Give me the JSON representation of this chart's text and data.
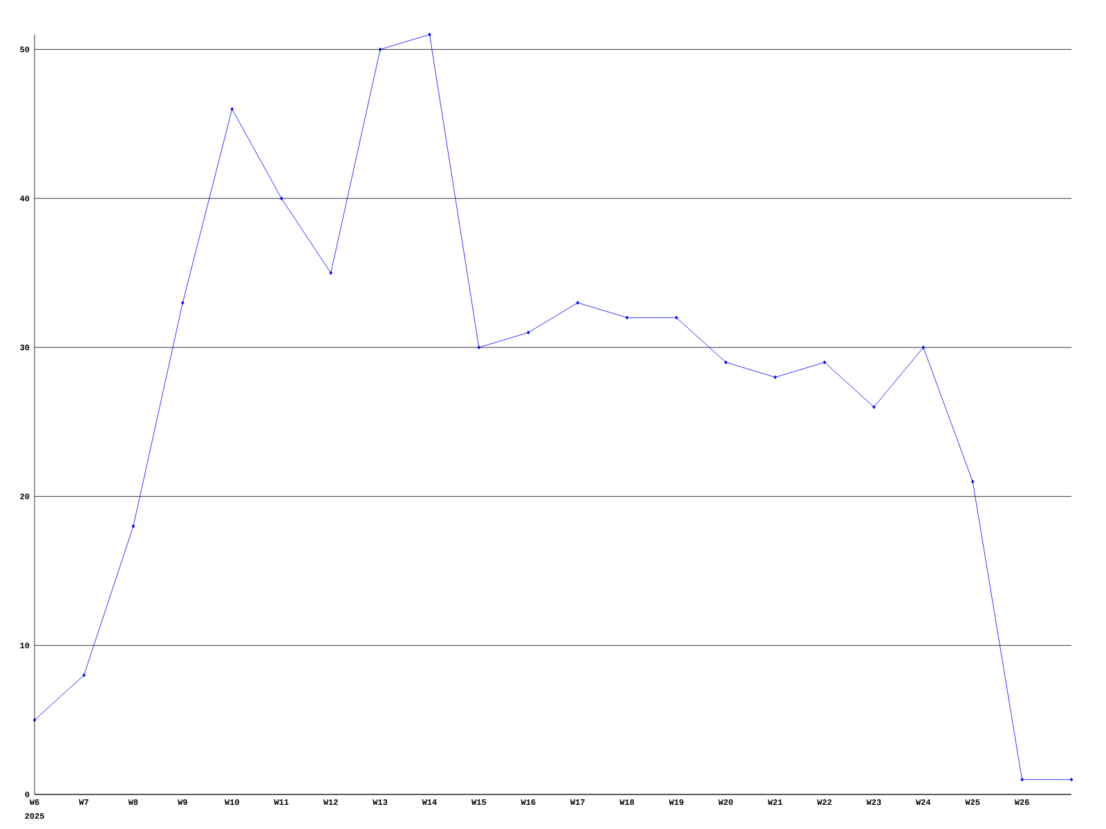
{
  "chart_data": {
    "type": "line",
    "categories": [
      "W6",
      "W7",
      "W8",
      "W9",
      "W10",
      "W11",
      "W12",
      "W13",
      "W14",
      "W15",
      "W16",
      "W17",
      "W18",
      "W19",
      "W20",
      "W21",
      "W22",
      "W23",
      "W24",
      "W25",
      "W26",
      null
    ],
    "values": [
      5,
      8,
      18,
      33,
      46,
      40,
      35,
      50,
      51,
      30,
      31,
      33,
      32,
      32,
      29,
      28,
      29,
      26,
      30,
      21,
      1,
      1
    ],
    "color": "#0000ff",
    "marker": "diamond",
    "line_style": "solid",
    "grid": "y",
    "ylim": [
      0,
      51
    ],
    "yticks": [
      0,
      10,
      20,
      30,
      40,
      50
    ],
    "annotations": [
      "2025"
    ]
  }
}
